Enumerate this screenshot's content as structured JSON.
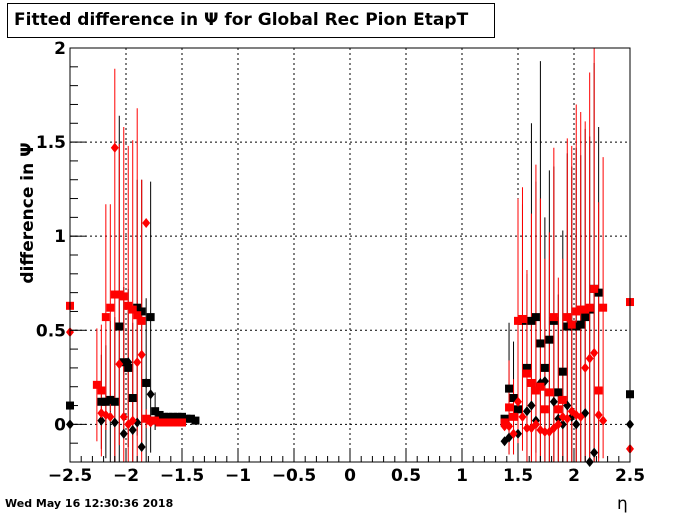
{
  "header": {
    "title": "Fitted difference in  Ψ  for Global Rec Pion EtapT"
  },
  "footer": {
    "timestamp": "Wed May 16 12:30:36 2018"
  },
  "colors": {
    "series_black": "#000000",
    "series_red": "#ff0000"
  },
  "chart_data": {
    "type": "scatter",
    "title": "Fitted difference in  Ψ  for Global Rec Pion EtapT",
    "xlabel": "η",
    "ylabel": "difference in  Ψ",
    "xlim": [
      -2.5,
      2.5
    ],
    "ylim": [
      -0.2,
      2.0
    ],
    "x_ticks": [
      -2.5,
      -2,
      -1.5,
      -1,
      -0.5,
      0,
      0.5,
      1,
      1.5,
      2,
      2.5
    ],
    "x_tick_labels": [
      "−2.5",
      "−2",
      "−1.5",
      "−1",
      "−0.5",
      "0",
      "0.5",
      "1",
      "1.5",
      "2",
      "2.5"
    ],
    "y_ticks": [
      0,
      0.5,
      1,
      1.5,
      2
    ],
    "y_tick_labels": [
      "0",
      "0.5",
      "1",
      "1.5",
      "2"
    ],
    "grid": true,
    "series": [
      {
        "marker": "square",
        "color": "#000000",
        "x": [
          -2.5,
          -2.22,
          -2.18,
          -2.14,
          -2.1,
          -2.06,
          -2.02,
          -1.98,
          -1.94,
          -1.9,
          -1.86,
          -1.82,
          -1.78,
          -1.74,
          -1.7,
          -1.66,
          -1.62,
          -1.58,
          -1.54,
          -1.5,
          -1.46,
          -1.42,
          -1.38,
          1.38,
          1.42,
          1.46,
          1.5,
          1.54,
          1.58,
          1.62,
          1.66,
          1.7,
          1.74,
          1.78,
          1.82,
          1.86,
          1.9,
          1.94,
          1.98,
          2.02,
          2.06,
          2.1,
          2.14,
          2.18,
          2.22,
          2.5
        ],
        "y": [
          0.1,
          0.12,
          0.12,
          0.13,
          0.12,
          0.52,
          0.33,
          0.3,
          0.14,
          0.62,
          0.6,
          0.22,
          0.57,
          0.07,
          0.05,
          0.04,
          0.04,
          0.04,
          0.04,
          0.04,
          0.03,
          0.03,
          0.02,
          0.03,
          0.19,
          0.14,
          0.08,
          0.55,
          0.3,
          0.55,
          0.57,
          0.43,
          0.3,
          0.45,
          0.55,
          0.17,
          0.28,
          0.52,
          0.53,
          0.52,
          0.53,
          0.57,
          0.61,
          0.72,
          0.7,
          0.16
        ],
        "err": [
          0.04,
          0.25,
          0.3,
          0.42,
          0.45,
          1.12,
          0.4,
          0.42,
          0.4,
          0.68,
          0.7,
          0.45,
          0.72,
          0.1,
          0.02,
          0.02,
          0.02,
          0.02,
          0.02,
          0.02,
          0.02,
          0.02,
          0.02,
          0.02,
          0.35,
          0.3,
          0.3,
          0.62,
          0.5,
          1.05,
          0.72,
          1.5,
          0.8,
          0.9,
          0.82,
          0.52,
          0.75,
          0.92,
          0.84,
          0.95,
          0.9,
          1.0,
          0.92,
          1.2,
          0.88,
          0.4
        ]
      },
      {
        "marker": "diamond",
        "color": "#000000",
        "x": [
          -2.5,
          -2.22,
          -2.1,
          -2.02,
          -1.98,
          -1.94,
          -1.9,
          -1.86,
          -1.82,
          -1.78,
          1.38,
          1.42,
          1.5,
          1.58,
          1.62,
          1.66,
          1.7,
          1.74,
          1.82,
          1.86,
          1.9,
          1.94,
          1.98,
          2.02,
          2.1,
          2.14,
          2.18,
          2.5
        ],
        "y": [
          0.0,
          0.02,
          0.01,
          -0.05,
          0.33,
          -0.03,
          0.01,
          -0.12,
          0.22,
          0.16,
          -0.09,
          -0.07,
          -0.05,
          0.07,
          0.1,
          0.02,
          0.22,
          0.23,
          0.12,
          0.03,
          0.0,
          0.1,
          0.04,
          0.0,
          0.06,
          -0.2,
          -0.15,
          0.0
        ]
      },
      {
        "marker": "square",
        "color": "#ff0000",
        "x": [
          -2.5,
          -2.26,
          -2.22,
          -2.18,
          -2.14,
          -2.1,
          -2.06,
          -2.02,
          -1.98,
          -1.94,
          -1.9,
          -1.86,
          -1.82,
          -1.78,
          -1.74,
          -1.7,
          -1.66,
          -1.62,
          -1.58,
          -1.54,
          -1.5,
          1.38,
          1.42,
          1.46,
          1.5,
          1.54,
          1.58,
          1.62,
          1.66,
          1.7,
          1.74,
          1.78,
          1.82,
          1.86,
          1.9,
          1.94,
          1.98,
          2.02,
          2.06,
          2.1,
          2.14,
          2.18,
          2.22,
          2.26,
          2.5
        ],
        "y": [
          0.63,
          0.21,
          0.18,
          0.57,
          0.62,
          0.69,
          0.69,
          0.68,
          0.63,
          0.61,
          0.58,
          0.55,
          0.03,
          0.02,
          0.02,
          0.01,
          0.01,
          0.01,
          0.01,
          0.01,
          0.01,
          0.01,
          0.09,
          0.04,
          0.55,
          0.56,
          0.27,
          0.22,
          0.18,
          0.2,
          0.08,
          0.17,
          0.57,
          0.08,
          0.13,
          0.57,
          0.53,
          0.6,
          0.61,
          0.61,
          0.62,
          0.72,
          0.18,
          0.62,
          0.65
        ],
        "err": [
          0.9,
          0.3,
          0.35,
          0.6,
          0.55,
          1.2,
          0.8,
          0.9,
          0.85,
          0.9,
          1.1,
          0.75,
          0.05,
          0.02,
          0.01,
          0.01,
          0.01,
          0.01,
          0.01,
          0.01,
          0.01,
          0.01,
          0.25,
          0.2,
          0.65,
          0.7,
          0.55,
          0.9,
          1.2,
          1.0,
          0.8,
          0.85,
          0.9,
          0.7,
          0.75,
          0.95,
          0.95,
          1.1,
          1.05,
          1.0,
          1.25,
          1.8,
          1.0,
          0.8,
          0.65
        ]
      },
      {
        "marker": "diamond",
        "color": "#ff0000",
        "x": [
          -2.5,
          -2.22,
          -2.18,
          -2.14,
          -2.1,
          -2.06,
          -2.02,
          -1.98,
          -1.94,
          -1.9,
          -1.86,
          -1.82,
          -1.78,
          1.38,
          1.42,
          1.46,
          1.5,
          1.54,
          1.58,
          1.62,
          1.66,
          1.7,
          1.74,
          1.78,
          1.82,
          1.86,
          1.9,
          1.94,
          1.98,
          2.02,
          2.06,
          2.1,
          2.14,
          2.18,
          2.22,
          2.26,
          2.5
        ],
        "y": [
          0.49,
          0.06,
          0.05,
          0.04,
          1.47,
          0.32,
          0.04,
          0.0,
          0.02,
          0.33,
          0.37,
          1.07,
          0.01,
          -0.01,
          -0.01,
          -0.05,
          0.12,
          0.04,
          -0.02,
          -0.02,
          0.0,
          -0.03,
          -0.04,
          -0.04,
          -0.02,
          0.0,
          0.04,
          0.03,
          0.07,
          0.05,
          0.04,
          0.3,
          0.35,
          0.38,
          0.05,
          0.02,
          -0.13
        ]
      }
    ]
  }
}
